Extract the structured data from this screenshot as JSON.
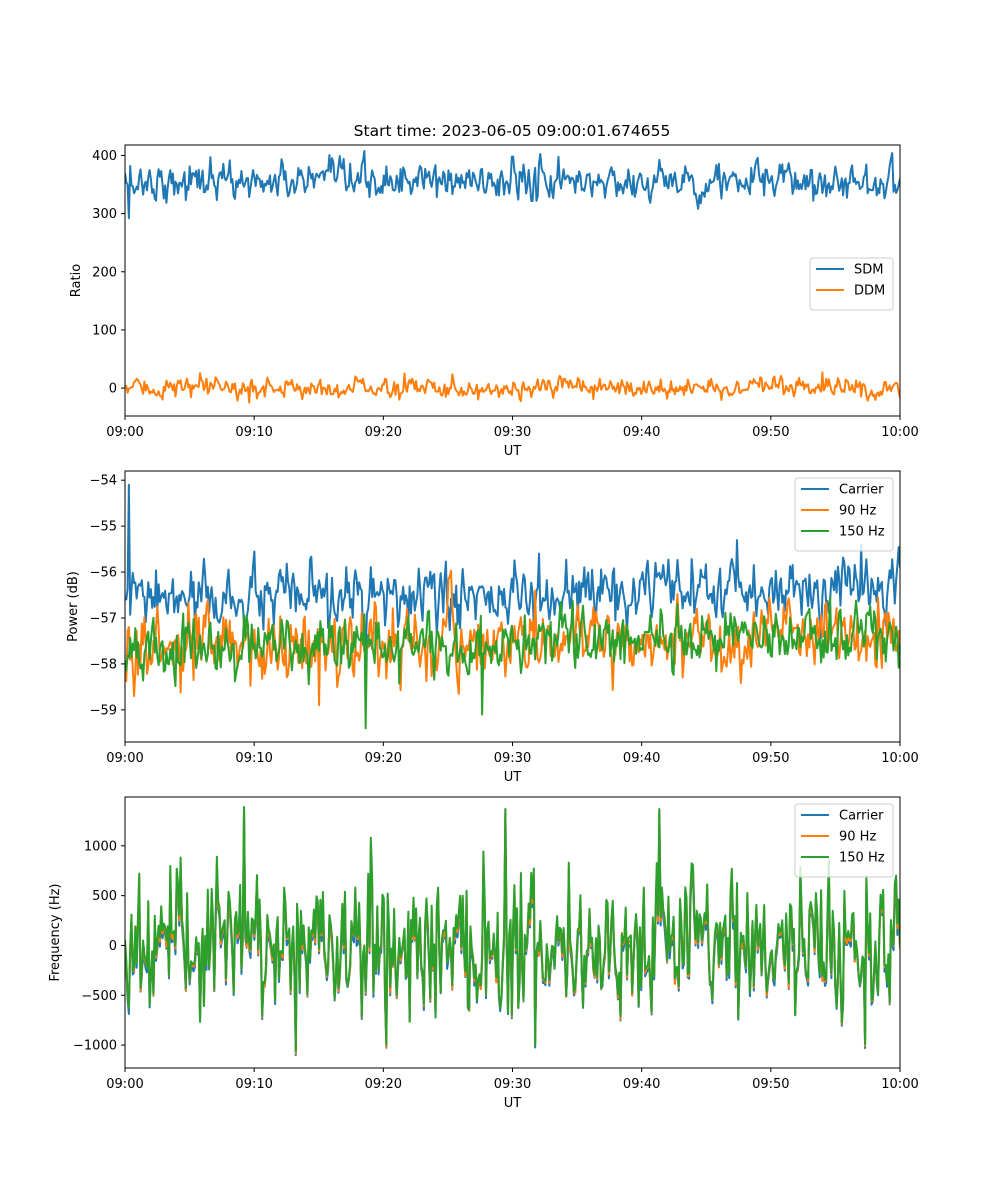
{
  "figure": {
    "title": "Start time: 2023-06-05 09:00:01.674655"
  },
  "chart_data": [
    {
      "type": "line",
      "title": "Start time: 2023-06-05 09:00:01.674655",
      "xlabel": "UT",
      "ylabel": "Ratio",
      "x_range": [
        "09:00",
        "10:00"
      ],
      "xticks": [
        "09:00",
        "09:10",
        "09:20",
        "09:30",
        "09:40",
        "09:50",
        "10:00"
      ],
      "ylim": [
        -48,
        418
      ],
      "yticks": [
        0,
        100,
        200,
        300,
        400
      ],
      "ytick_labels": [
        "0",
        "100",
        "200",
        "300",
        "400"
      ],
      "legend_position": "center-right",
      "grid": false,
      "series": [
        {
          "name": "SDM",
          "color": "#1f77b4",
          "points": 600,
          "mean": 355,
          "spread": 15,
          "spikes": [
            [
              0.005,
              292
            ],
            [
              0.11,
              397
            ],
            [
              0.5,
              398
            ]
          ]
        },
        {
          "name": "DDM",
          "color": "#ff7f0e",
          "points": 600,
          "mean": 0,
          "spread": 8,
          "spikes": [
            [
              0.16,
              -25
            ],
            [
              0.36,
              25
            ],
            [
              0.9,
              27
            ]
          ]
        }
      ]
    },
    {
      "type": "line",
      "xlabel": "UT",
      "ylabel": "Power (dB)",
      "x_range": [
        "09:00",
        "10:00"
      ],
      "xticks": [
        "09:00",
        "09:10",
        "09:20",
        "09:30",
        "09:40",
        "09:50",
        "10:00"
      ],
      "ylim": [
        -59.7,
        -53.8
      ],
      "yticks": [
        -59,
        -58,
        -57,
        -56,
        -55,
        -54
      ],
      "ytick_labels": [
        "−59",
        "−58",
        "−57",
        "−56",
        "−55",
        "−54"
      ],
      "legend_position": "top-right",
      "grid": false,
      "series": [
        {
          "name": "Carrier",
          "color": "#1f77b4",
          "points": 600,
          "mean": -56.6,
          "spread": 0.3,
          "spikes": [
            [
              0.005,
              -54.1
            ],
            [
              0.95,
              -55.4
            ]
          ]
        },
        {
          "name": "90 Hz",
          "color": "#ff7f0e",
          "points": 600,
          "mean": -57.7,
          "spread": 0.35,
          "spikes": [
            [
              0.011,
              -58.7
            ],
            [
              0.25,
              -58.9
            ]
          ]
        },
        {
          "name": "150 Hz",
          "color": "#2ca02c",
          "points": 600,
          "mean": -57.7,
          "spread": 0.3,
          "spikes": [
            [
              0.31,
              -59.4
            ],
            [
              0.46,
              -59.1
            ]
          ]
        }
      ]
    },
    {
      "type": "line",
      "xlabel": "UT",
      "ylabel": "Frequency (Hz)",
      "x_range": [
        "09:00",
        "10:00"
      ],
      "xticks": [
        "09:00",
        "09:10",
        "09:20",
        "09:30",
        "09:40",
        "09:50",
        "10:00"
      ],
      "ylim": [
        -1230,
        1490
      ],
      "yticks": [
        -1000,
        -500,
        0,
        500,
        1000
      ],
      "ytick_labels": [
        "−1000",
        "−500",
        "0",
        "500",
        "1000"
      ],
      "legend_position": "top-right",
      "grid": false,
      "series": [
        {
          "name": "Carrier",
          "color": "#1f77b4",
          "points": 600,
          "mean": -30,
          "spread": 330,
          "spikes": [
            [
              0.153,
              1350
            ],
            [
              0.22,
              -1100
            ],
            [
              0.49,
              1330
            ],
            [
              0.69,
              1340
            ],
            [
              0.955,
              -1030
            ]
          ]
        },
        {
          "name": "90 Hz",
          "color": "#ff7f0e",
          "points": 600,
          "mean": 10,
          "spread": 330,
          "spikes": [
            [
              0.153,
              1380
            ],
            [
              0.22,
              -1080
            ],
            [
              0.49,
              1360
            ],
            [
              0.69,
              1360
            ],
            [
              0.955,
              -1010
            ]
          ]
        },
        {
          "name": "150 Hz",
          "color": "#2ca02c",
          "points": 600,
          "mean": 40,
          "spread": 330,
          "spikes": [
            [
              0.153,
              1390
            ],
            [
              0.22,
              -1060
            ],
            [
              0.49,
              1370
            ],
            [
              0.69,
              1370
            ],
            [
              0.955,
              -990
            ]
          ]
        }
      ]
    }
  ]
}
